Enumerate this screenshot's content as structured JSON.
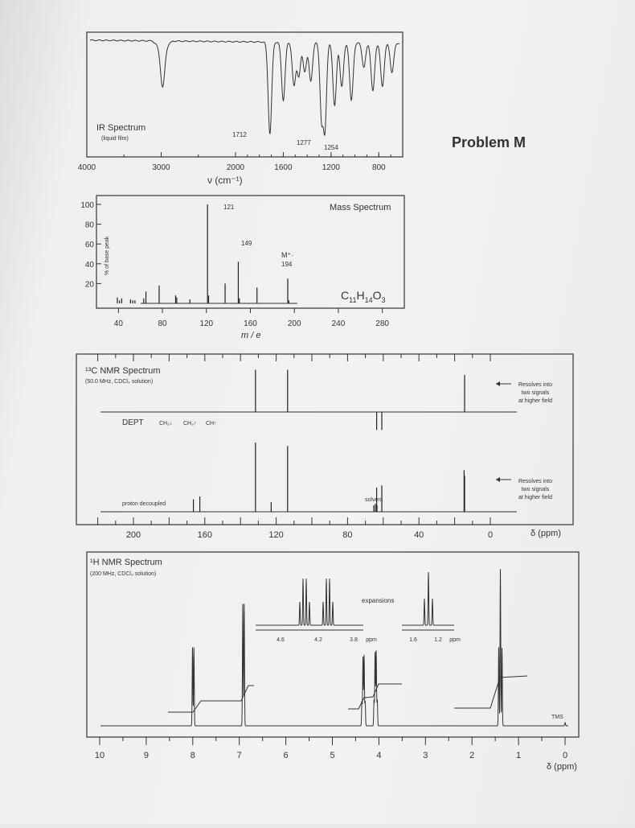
{
  "problem_title": "Problem M",
  "chart_data": [
    {
      "type": "line",
      "title": "IR Spectrum",
      "subtitle": "(liquid film)",
      "xlabel": "ν (cm⁻¹)",
      "x_ticks": [
        "4000",
        "3000",
        "2000",
        "1600",
        "1200",
        "800"
      ],
      "xlim": [
        4000,
        600
      ],
      "peak_labels": [
        "1712",
        "1277",
        "1254"
      ],
      "bands": [
        {
          "x": 2980,
          "depth": 0.38
        },
        {
          "x": 1712,
          "depth": 0.95
        },
        {
          "x": 1600,
          "depth": 0.6
        },
        {
          "x": 1510,
          "depth": 0.45
        },
        {
          "x": 1470,
          "depth": 0.35
        },
        {
          "x": 1420,
          "depth": 0.3
        },
        {
          "x": 1370,
          "depth": 0.4
        },
        {
          "x": 1277,
          "depth": 0.82
        },
        {
          "x": 1254,
          "depth": 0.95
        },
        {
          "x": 1170,
          "depth": 0.65
        },
        {
          "x": 1110,
          "depth": 0.45
        },
        {
          "x": 1030,
          "depth": 0.6
        },
        {
          "x": 925,
          "depth": 0.25
        },
        {
          "x": 850,
          "depth": 0.5
        },
        {
          "x": 770,
          "depth": 0.45
        },
        {
          "x": 690,
          "depth": 0.3
        }
      ]
    },
    {
      "type": "bar",
      "title": "Mass Spectrum",
      "xlabel": "m / e",
      "ylabel": "% of base peak",
      "y_ticks": [
        "100",
        "80",
        "60",
        "40",
        "20"
      ],
      "x_ticks": [
        "40",
        "80",
        "120",
        "160",
        "200",
        "240",
        "280"
      ],
      "xlim": [
        20,
        300
      ],
      "ylim": [
        0,
        100
      ],
      "formula_parts": [
        "C",
        "11",
        "H",
        "14",
        "O",
        "3"
      ],
      "peak_labels": [
        "121",
        "149",
        "M⁺·",
        "194"
      ],
      "peaks": [
        {
          "mz": 39,
          "intensity": 6
        },
        {
          "mz": 41,
          "intensity": 3
        },
        {
          "mz": 43,
          "intensity": 5
        },
        {
          "mz": 51,
          "intensity": 4
        },
        {
          "mz": 53,
          "intensity": 3
        },
        {
          "mz": 55,
          "intensity": 3
        },
        {
          "mz": 63,
          "intensity": 5
        },
        {
          "mz": 65,
          "intensity": 12
        },
        {
          "mz": 77,
          "intensity": 18
        },
        {
          "mz": 92,
          "intensity": 8
        },
        {
          "mz": 93,
          "intensity": 6
        },
        {
          "mz": 105,
          "intensity": 4
        },
        {
          "mz": 121,
          "intensity": 100
        },
        {
          "mz": 122,
          "intensity": 8
        },
        {
          "mz": 137,
          "intensity": 20
        },
        {
          "mz": 149,
          "intensity": 42
        },
        {
          "mz": 150,
          "intensity": 5
        },
        {
          "mz": 166,
          "intensity": 16
        },
        {
          "mz": 194,
          "intensity": 25
        },
        {
          "mz": 195,
          "intensity": 3
        }
      ]
    },
    {
      "type": "line",
      "title": "¹³C NMR Spectrum",
      "subtitle": "(50.0 MHz, CDCl₃ solution)",
      "xlabel": "δ (ppm)",
      "x_ticks": [
        "200",
        "160",
        "120",
        "80",
        "40",
        "0"
      ],
      "xlim": [
        220,
        0
      ],
      "dept_label": "DEPT",
      "dept_legend": [
        "CH₂↓",
        "CH₃↑",
        "CH↑"
      ],
      "note_top": [
        "Resolves into",
        "two signals",
        "at higher field"
      ],
      "note_bottom": [
        "Resolves into",
        "two signals",
        "at higher field"
      ],
      "proton_decoupled_label": "proton decoupled",
      "solvent_label": "solvent",
      "dept_peaks": [
        {
          "ppm": 131.6,
          "height": 0.82,
          "direction": "up"
        },
        {
          "ppm": 113.6,
          "height": 0.82,
          "direction": "up"
        },
        {
          "ppm": 63.7,
          "height": 0.35,
          "direction": "down"
        },
        {
          "ppm": 60.8,
          "height": 0.35,
          "direction": "down"
        },
        {
          "ppm": 14.4,
          "height": 0.72,
          "direction": "up"
        }
      ],
      "decoupled_peaks": [
        {
          "ppm": 166.4,
          "height": 0.18
        },
        {
          "ppm": 162.8,
          "height": 0.22
        },
        {
          "ppm": 131.6,
          "height": 1.0
        },
        {
          "ppm": 122.8,
          "height": 0.14
        },
        {
          "ppm": 113.6,
          "height": 0.95
        },
        {
          "ppm": 63.7,
          "height": 0.35
        },
        {
          "ppm": 60.8,
          "height": 0.38
        },
        {
          "ppm": 14.7,
          "height": 0.6
        },
        {
          "ppm": 14.4,
          "height": 0.52
        }
      ]
    },
    {
      "type": "line",
      "title": "¹H NMR Spectrum",
      "subtitle": "(200 MHz, CDCl₃ solution)",
      "xlabel": "δ (ppm)",
      "x_ticks": [
        "10",
        "9",
        "8",
        "7",
        "6",
        "5",
        "4",
        "3",
        "2",
        "1",
        "0"
      ],
      "xlim": [
        10.4,
        -0.3
      ],
      "tms_label": "TMS",
      "expansions_label": "expansions",
      "expansion_left_ticks": [
        "4.6",
        "4.2",
        "3.8",
        "ppm"
      ],
      "expansion_right_ticks": [
        "1.6",
        "1.2",
        "ppm"
      ],
      "signals": [
        {
          "ppm": 7.99,
          "height": 0.5,
          "multiplicity": "d"
        },
        {
          "ppm": 6.91,
          "height": 0.78,
          "multiplicity": "d"
        },
        {
          "ppm": 4.33,
          "height": 0.45,
          "multiplicity": "q"
        },
        {
          "ppm": 4.07,
          "height": 0.48,
          "multiplicity": "q"
        },
        {
          "ppm": 1.39,
          "height": 1.0,
          "multiplicity": "t"
        }
      ]
    }
  ]
}
